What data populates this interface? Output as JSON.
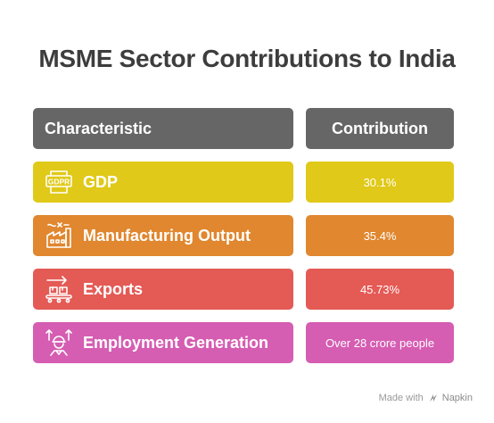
{
  "title": "MSME Sector Contributions to India",
  "header": {
    "left": "Characteristic",
    "right": "Contribution",
    "color": "#666666"
  },
  "rows": [
    {
      "label": "GDP",
      "value": "30.1%",
      "color": "#e0c918",
      "icon": "gdp-document-icon"
    },
    {
      "label": "Manufacturing Output",
      "value": "35.4%",
      "color": "#e0872f",
      "icon": "factory-icon"
    },
    {
      "label": "Exports",
      "value": "45.73%",
      "color": "#e45a55",
      "icon": "conveyor-export-icon"
    },
    {
      "label": "Employment Generation",
      "value": "Over 28 crore people",
      "color": "#d55db2",
      "icon": "worker-arrows-icon"
    }
  ],
  "footer": {
    "made_with": "Made with",
    "brand": "Napkin"
  }
}
